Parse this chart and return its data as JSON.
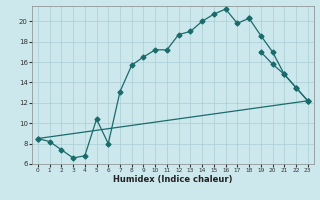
{
  "xlabel": "Humidex (Indice chaleur)",
  "bg_color": "#cde8ec",
  "grid_color": "#aacdd4",
  "line_color": "#1a6b6b",
  "xlim": [
    -0.5,
    23.5
  ],
  "ylim": [
    6,
    21.5
  ],
  "yticks": [
    6,
    8,
    10,
    12,
    14,
    16,
    18,
    20
  ],
  "xticks": [
    0,
    1,
    2,
    3,
    4,
    5,
    6,
    7,
    8,
    9,
    10,
    11,
    12,
    13,
    14,
    15,
    16,
    17,
    18,
    19,
    20,
    21,
    22,
    23
  ],
  "line1_x": [
    0,
    1,
    2,
    3,
    4,
    5,
    6,
    7,
    8,
    9,
    10,
    11,
    12,
    13,
    14,
    15,
    16,
    17,
    18
  ],
  "line1_y": [
    8.5,
    8.2,
    7.4,
    6.6,
    6.8,
    10.4,
    8.0,
    13.1,
    15.7,
    16.5,
    17.2,
    17.2,
    18.7,
    19.0,
    20.0,
    20.7,
    21.2,
    19.8,
    20.3
  ],
  "line2_x": [
    18,
    19,
    20,
    21,
    22,
    23
  ],
  "line2_y": [
    20.3,
    18.6,
    17.0,
    14.8,
    13.5,
    12.2
  ],
  "line3_x": [
    0,
    23
  ],
  "line3_y": [
    8.5,
    12.2
  ],
  "line4_x": [
    19,
    20,
    21,
    22,
    23
  ],
  "line4_y": [
    17.0,
    15.8,
    14.8,
    13.5,
    12.2
  ]
}
